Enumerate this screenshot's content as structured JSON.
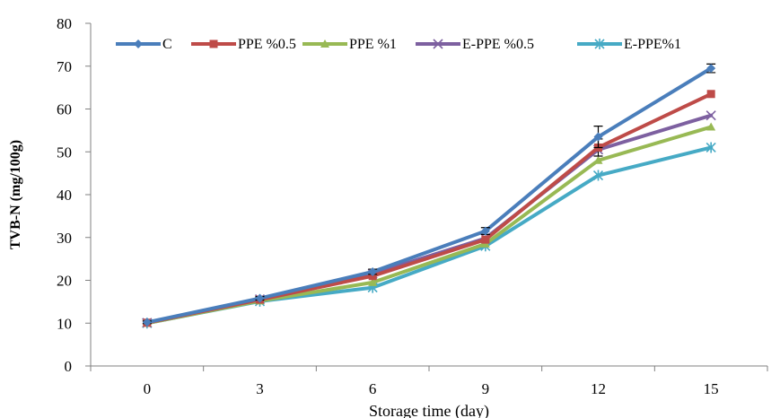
{
  "chart_data": {
    "type": "line",
    "xlabel": "Storage time (day)",
    "ylabel": "TVB-N (mg/100g)",
    "x": [
      0,
      3,
      6,
      9,
      12,
      15
    ],
    "ylim": [
      0,
      80
    ],
    "yticks": [
      0,
      10,
      20,
      30,
      40,
      50,
      60,
      70,
      80
    ],
    "grid": false,
    "legend_position": "top",
    "series": [
      {
        "name": "C",
        "color": "#4a7ebb",
        "marker": "diamond",
        "values": [
          10.2,
          15.8,
          22.0,
          31.5,
          53.5,
          69.5
        ],
        "errors": [
          0.3,
          0.4,
          0.6,
          0.8,
          2.5,
          1.0
        ]
      },
      {
        "name": "PPE %0.5",
        "color": "#be4b48",
        "marker": "square",
        "values": [
          10.1,
          15.5,
          21.0,
          29.5,
          51.0,
          63.5
        ],
        "errors": [
          0,
          0,
          0,
          0,
          2.0,
          0
        ]
      },
      {
        "name": "PPE %1",
        "color": "#98b954",
        "marker": "triangle",
        "values": [
          10.0,
          15.2,
          19.5,
          28.5,
          48.0,
          55.8
        ],
        "errors": [
          0,
          0,
          0,
          0,
          0,
          0
        ]
      },
      {
        "name": "E-PPE %0.5",
        "color": "#7d60a0",
        "marker": "x",
        "values": [
          10.1,
          15.6,
          21.5,
          29.8,
          50.5,
          58.5
        ],
        "errors": [
          0,
          0,
          0,
          0,
          0,
          0
        ]
      },
      {
        "name": "E-PPE%1",
        "color": "#46aac5",
        "marker": "star",
        "values": [
          10.0,
          15.1,
          18.3,
          28.0,
          44.5,
          51.0
        ],
        "errors": [
          0,
          0,
          0,
          0,
          0,
          0
        ]
      }
    ]
  }
}
